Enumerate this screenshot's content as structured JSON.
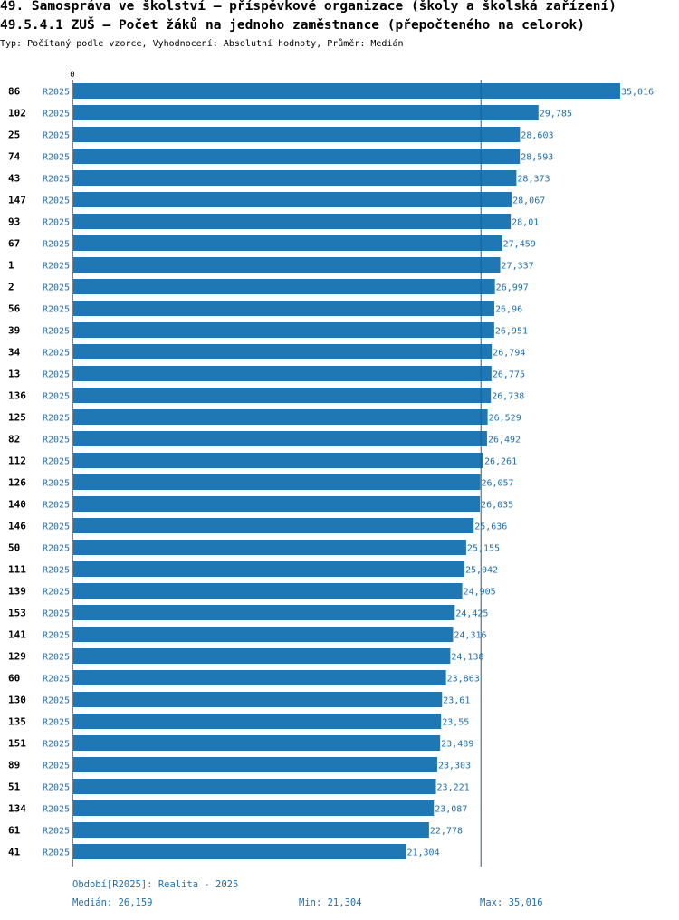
{
  "header": {
    "title_line1": "49. Samospráva ve školství – příspěvkové organizace (školy a školská zařízení)",
    "title_line2": "49.5.4.1 ZUŠ – Počet žáků na jednoho zaměstnance (přepočteného na celorok)",
    "subtitle": "Typ: Počítaný podle vzorce, Vyhodnocení: Absolutní hodnoty, Průměr: Medián"
  },
  "colors": {
    "bar": "#1f77b4",
    "link_text": "#1f6fb0",
    "label": "#000000"
  },
  "chart_data": {
    "type": "bar",
    "orientation": "horizontal",
    "series_label": "R2025",
    "categories": [
      "86",
      "102",
      "25",
      "74",
      "43",
      "147",
      "93",
      "67",
      "1",
      "2",
      "56",
      "39",
      "34",
      "13",
      "136",
      "125",
      "82",
      "112",
      "126",
      "140",
      "146",
      "50",
      "111",
      "139",
      "153",
      "141",
      "129",
      "60",
      "130",
      "135",
      "151",
      "89",
      "51",
      "134",
      "61",
      "41"
    ],
    "values": [
      35.016,
      29.785,
      28.603,
      28.593,
      28.373,
      28.067,
      28.01,
      27.459,
      27.337,
      26.997,
      26.96,
      26.951,
      26.794,
      26.775,
      26.738,
      26.529,
      26.492,
      26.261,
      26.057,
      26.035,
      25.636,
      25.155,
      25.042,
      24.905,
      24.425,
      24.316,
      24.138,
      23.863,
      23.61,
      23.55,
      23.489,
      23.303,
      23.221,
      23.087,
      22.778,
      21.304
    ],
    "value_labels": [
      "35,016",
      "29,785",
      "28,603",
      "28,593",
      "28,373",
      "28,067",
      "28,01",
      "27,459",
      "27,337",
      "26,997",
      "26,96",
      "26,951",
      "26,794",
      "26,775",
      "26,738",
      "26,529",
      "26,492",
      "26,261",
      "26,057",
      "26,035",
      "25,636",
      "25,155",
      "25,042",
      "24,905",
      "24,425",
      "24,316",
      "24,138",
      "23,863",
      "23,61",
      "23,55",
      "23,489",
      "23,303",
      "23,221",
      "23,087",
      "22,778",
      "21,304"
    ],
    "axis_zero_label": "0",
    "xlim": [
      0,
      35.016
    ],
    "median_line": 26.159,
    "grid": false
  },
  "footer": {
    "period": "Období[R2025]: Realita - 2025",
    "median": "Medián: 26,159",
    "min": "Min: 21,304",
    "max": "Max: 35,016"
  }
}
